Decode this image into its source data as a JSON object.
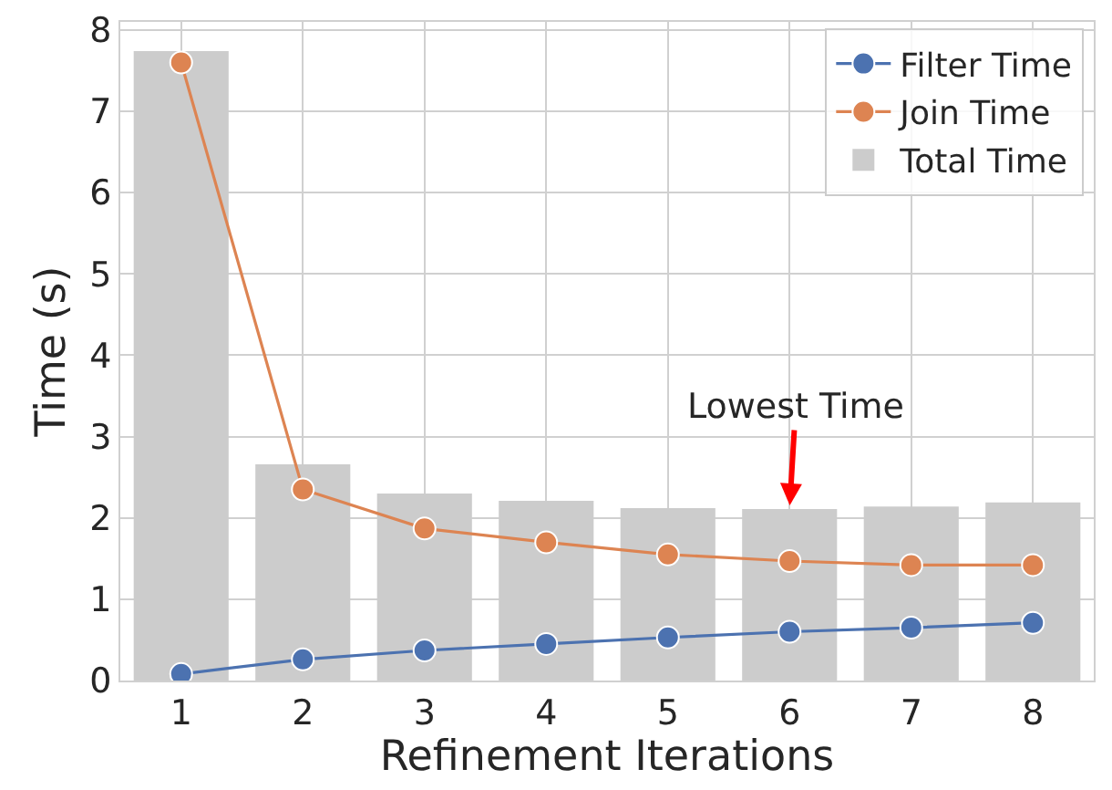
{
  "chart_data": {
    "type": "bar",
    "xlabel": "Refinement Iterations",
    "ylabel": "Time (s)",
    "categories": [
      "1",
      "2",
      "3",
      "4",
      "5",
      "6",
      "7",
      "8"
    ],
    "series": [
      {
        "name": "Filter Time",
        "type": "line",
        "color": "#4c72b0",
        "values": [
          0.08,
          0.26,
          0.37,
          0.45,
          0.53,
          0.6,
          0.65,
          0.71
        ]
      },
      {
        "name": "Join Time",
        "type": "line",
        "color": "#dd8452",
        "values": [
          7.6,
          2.35,
          1.87,
          1.7,
          1.55,
          1.47,
          1.42,
          1.42
        ]
      },
      {
        "name": "Total Time",
        "color": "#cccccc",
        "values": [
          7.74,
          2.66,
          2.3,
          2.21,
          2.12,
          2.11,
          2.14,
          2.19
        ]
      }
    ],
    "ylim": [
      0,
      8.1
    ],
    "yticks": [
      0,
      1,
      2,
      3,
      4,
      5,
      6,
      7,
      8
    ],
    "grid": true,
    "legend": "top right",
    "marker": "circle",
    "line_style": "solid",
    "annotations": [
      {
        "text": "Lowest Time",
        "x": "6",
        "y": 2.11
      }
    ]
  }
}
